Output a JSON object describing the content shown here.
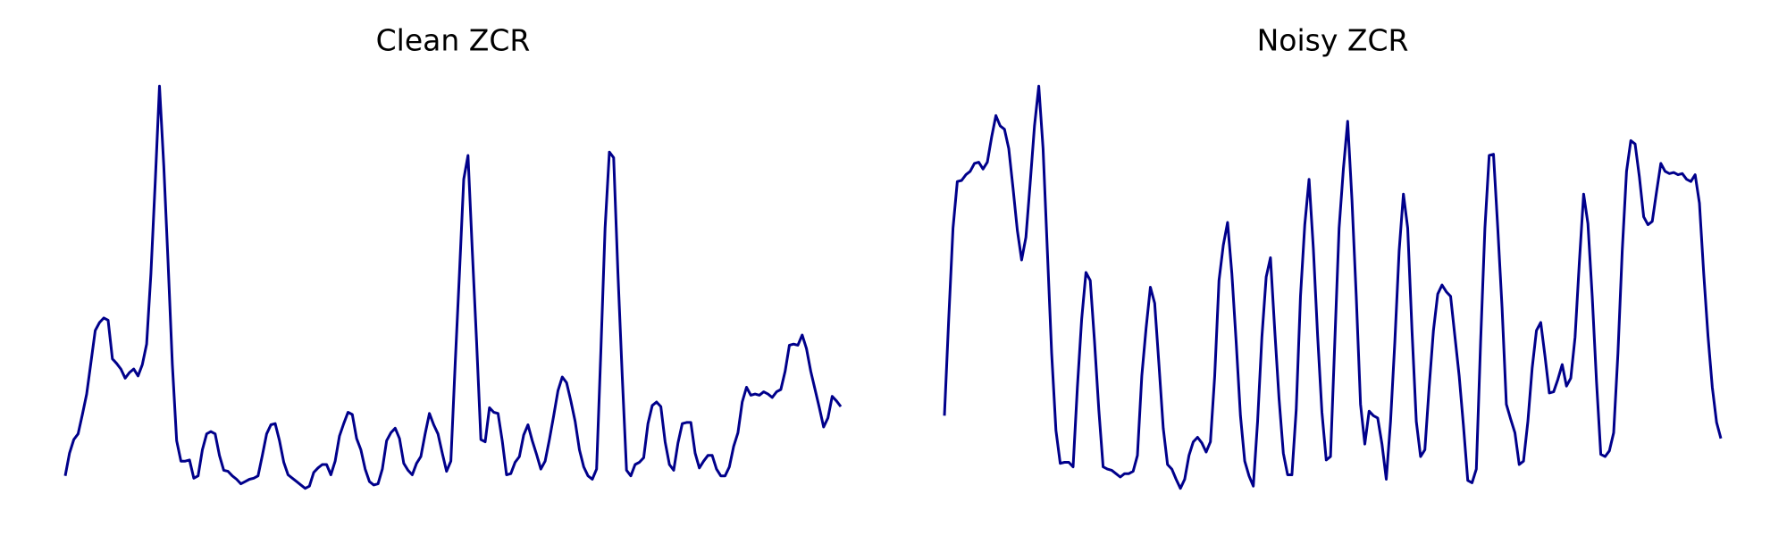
{
  "chart_data": [
    {
      "type": "line",
      "title": "Clean ZCR",
      "color": "#00008b",
      "ylim": [
        0,
        360
      ],
      "values": [
        12,
        32,
        44,
        49,
        66,
        84,
        112,
        140,
        147,
        151,
        149,
        115,
        111,
        106,
        98,
        103,
        106,
        100,
        110,
        128,
        190,
        270,
        355,
        285,
        200,
        110,
        43,
        25,
        25,
        26,
        10,
        12,
        35,
        49,
        51,
        49,
        30,
        17,
        16,
        12,
        9,
        5,
        7,
        9,
        10,
        12,
        30,
        49,
        57,
        58,
        43,
        24,
        13,
        10,
        7,
        4,
        1,
        3,
        15,
        19,
        22,
        22,
        13,
        25,
        47,
        58,
        68,
        66,
        45,
        35,
        18,
        7,
        4,
        5,
        18,
        43,
        50,
        54,
        45,
        23,
        17,
        13,
        23,
        29,
        49,
        67,
        57,
        49,
        32,
        16,
        25,
        110,
        190,
        273,
        294,
        210,
        130,
        44,
        42,
        72,
        68,
        67,
        43,
        13,
        14,
        24,
        29,
        48,
        57,
        43,
        31,
        18,
        25,
        44,
        65,
        87,
        99,
        94,
        78,
        60,
        35,
        20,
        12,
        9,
        18,
        120,
        230,
        297,
        292,
        190,
        100,
        17,
        12,
        22,
        24,
        28,
        58,
        74,
        77,
        73,
        42,
        22,
        17,
        41,
        58,
        59,
        59,
        32,
        19,
        25,
        30,
        30,
        18,
        12,
        12,
        20,
        38,
        50,
        77,
        90,
        83,
        84,
        83,
        86,
        84,
        81,
        86,
        88,
        104,
        127,
        128,
        127,
        136,
        124,
        104,
        88,
        72,
        55,
        63,
        82,
        78,
        73
      ]
    },
    {
      "type": "line",
      "title": "Noisy ZCR",
      "color": "#00008b",
      "ylim": [
        0,
        360
      ],
      "values": [
        65,
        150,
        230,
        271,
        272,
        277,
        280,
        287,
        288,
        282,
        288,
        310,
        329,
        320,
        317,
        300,
        265,
        228,
        202,
        222,
        270,
        320,
        355,
        300,
        210,
        120,
        52,
        23,
        24,
        24,
        20,
        90,
        150,
        191,
        184,
        130,
        70,
        20,
        18,
        17,
        14,
        11,
        14,
        14,
        16,
        30,
        100,
        142,
        178,
        164,
        110,
        54,
        22,
        18,
        9,
        1,
        9,
        30,
        42,
        46,
        41,
        33,
        42,
        100,
        184,
        215,
        235,
        190,
        130,
        65,
        25,
        12,
        3,
        60,
        134,
        187,
        204,
        140,
        80,
        32,
        13,
        13,
        70,
        170,
        233,
        273,
        212,
        135,
        68,
        26,
        29,
        130,
        230,
        282,
        324,
        255,
        170,
        75,
        40,
        69,
        65,
        63,
        40,
        9,
        60,
        130,
        210,
        260,
        230,
        140,
        60,
        29,
        35,
        90,
        140,
        172,
        180,
        174,
        170,
        135,
        100,
        56,
        8,
        6,
        18,
        130,
        230,
        294,
        295,
        230,
        160,
        75,
        62,
        50,
        22,
        25,
        60,
        107,
        140,
        147,
        117,
        85,
        86,
        97,
        110,
        91,
        98,
        134,
        200,
        260,
        234,
        170,
        95,
        31,
        29,
        34,
        50,
        120,
        210,
        280,
        307,
        304,
        275,
        240,
        233,
        236,
        262,
        287,
        280,
        278,
        279,
        277,
        278,
        273,
        271,
        277,
        252,
        190,
        135,
        90,
        59,
        45
      ]
    }
  ]
}
